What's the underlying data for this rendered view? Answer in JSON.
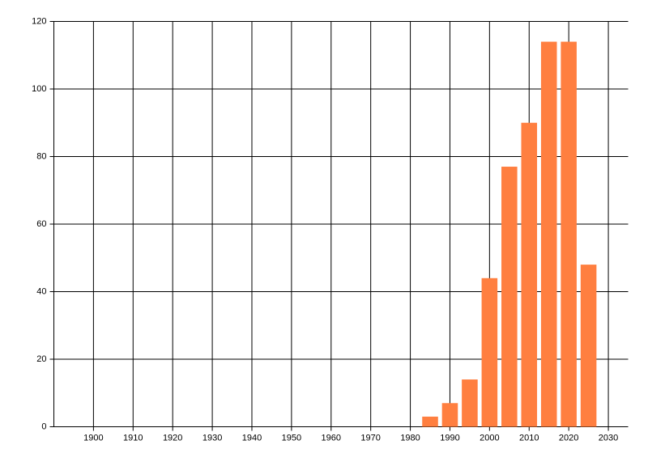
{
  "chart_data": {
    "type": "bar",
    "x": [
      1985,
      1990,
      1995,
      2000,
      2005,
      2010,
      2015,
      2020,
      2025
    ],
    "values": [
      3,
      7,
      14,
      44,
      77,
      90,
      114,
      114,
      48
    ],
    "color": "#ff7f40",
    "xlim": [
      1890,
      2035
    ],
    "xticks": [
      1900,
      1910,
      1920,
      1930,
      1940,
      1950,
      1960,
      1970,
      1980,
      1990,
      2000,
      2010,
      2020,
      2030
    ],
    "ylim": [
      0,
      120
    ],
    "yticks": [
      0,
      20,
      40,
      60,
      80,
      100,
      120
    ],
    "grid": true
  }
}
